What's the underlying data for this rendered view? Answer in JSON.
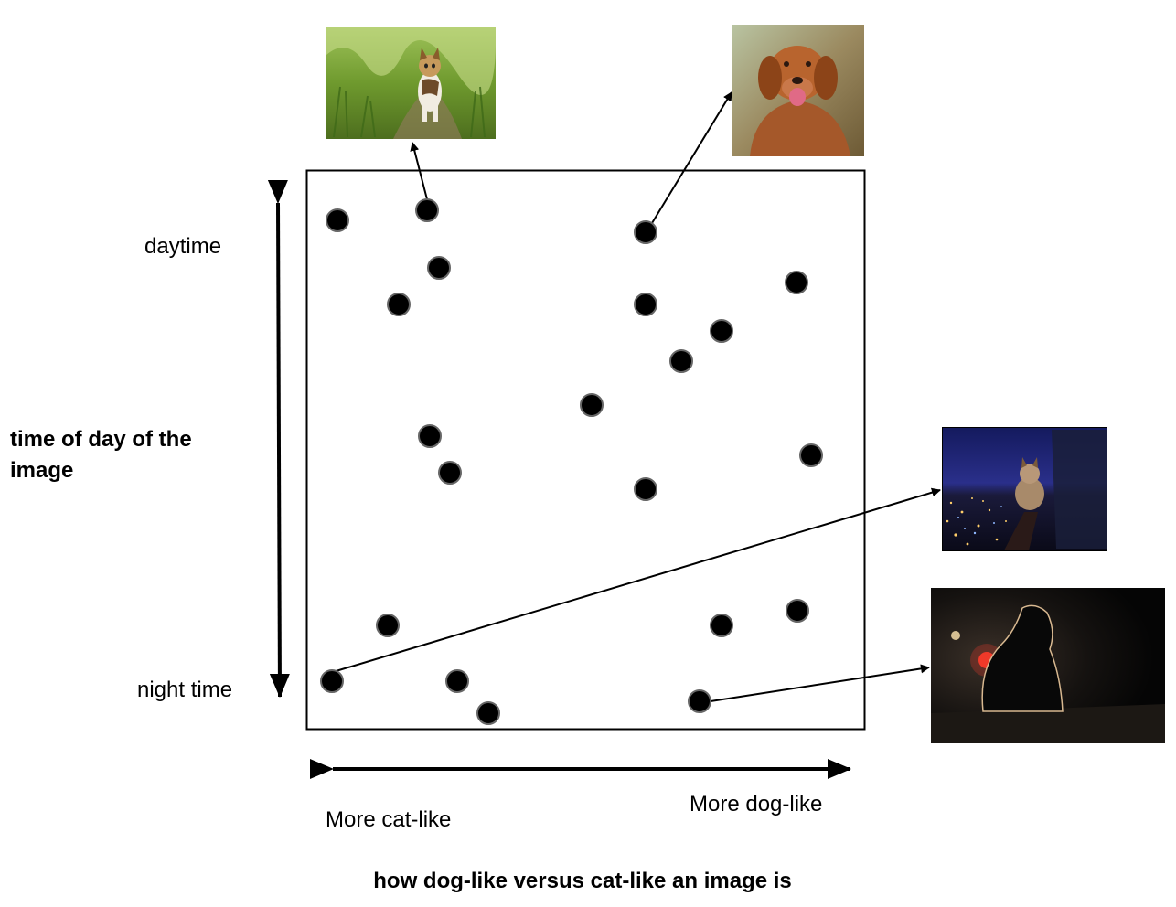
{
  "labels": {
    "y_top": "daytime",
    "y_bottom": "night time",
    "y_axis_title": [
      "time of day of the",
      "image"
    ],
    "x_left": "More cat-like",
    "x_right": "More dog-like",
    "x_axis_title": "how dog-like versus cat-like an image is"
  },
  "thumbnails": [
    {
      "name": "thumb-cat-daytime",
      "subject": "cat walking on grass path in daylight"
    },
    {
      "name": "thumb-dog-daytime",
      "subject": "brown fluffy dog in daylight"
    },
    {
      "name": "thumb-cat-night",
      "subject": "cat on railing over city lights at night"
    },
    {
      "name": "thumb-dog-night",
      "subject": "silhouetted dog on street at night"
    }
  ],
  "colors": {
    "dot": "#000000",
    "dot_stroke": "#666666",
    "line": "#000000"
  }
}
